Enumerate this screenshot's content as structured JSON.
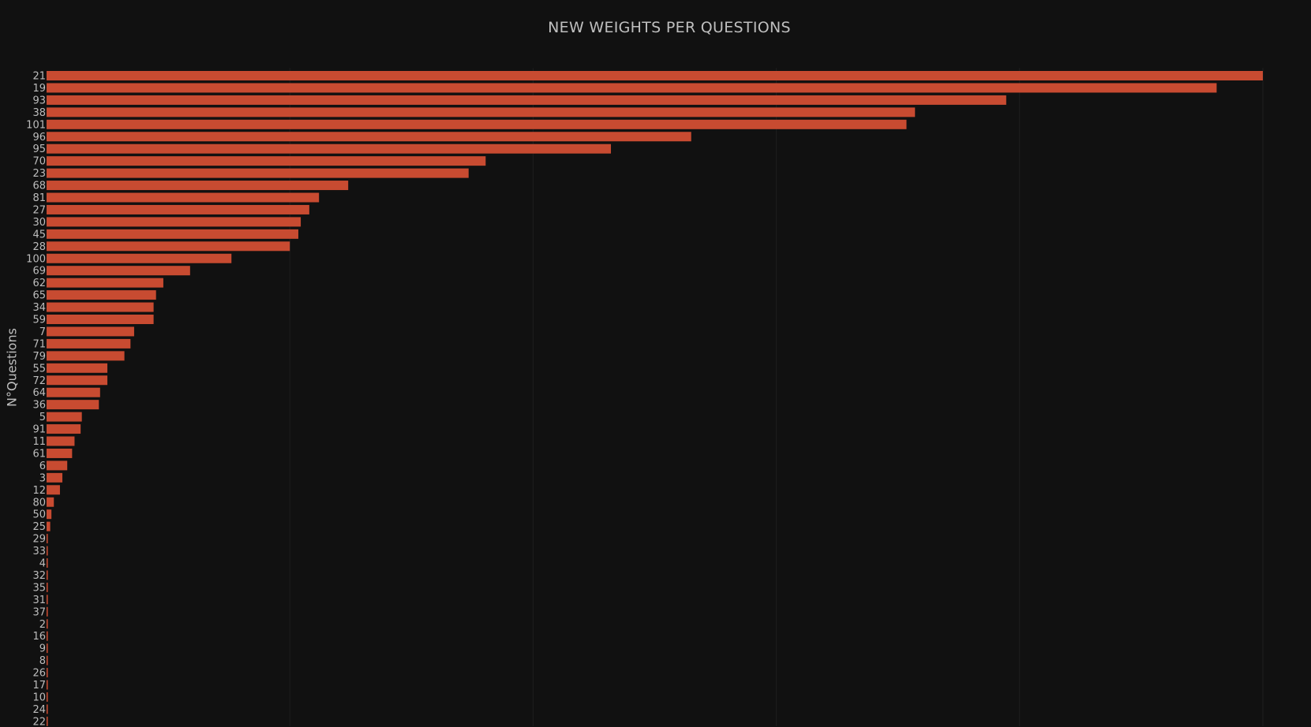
{
  "chart_data": {
    "type": "bar",
    "orientation": "horizontal",
    "title": "NEW WEIGHTS PER QUESTIONS",
    "xlabel": "",
    "ylabel": "N°Questions",
    "xlim": [
      0,
      100
    ],
    "grid": true,
    "legend": "none",
    "bar_color": "#c84b31",
    "categories": [
      "21",
      "19",
      "93",
      "38",
      "101",
      "96",
      "95",
      "70",
      "23",
      "68",
      "81",
      "27",
      "30",
      "45",
      "28",
      "100",
      "69",
      "62",
      "65",
      "34",
      "59",
      "7",
      "71",
      "79",
      "55",
      "72",
      "64",
      "36",
      "5",
      "91",
      "11",
      "61",
      "6",
      "3",
      "12",
      "80",
      "50",
      "25",
      "29",
      "33",
      "4",
      "32",
      "35",
      "31",
      "37",
      "2",
      "16",
      "9",
      "8",
      "26",
      "17",
      "10",
      "24",
      "22"
    ],
    "values": [
      100,
      96.2,
      78.9,
      71.4,
      70.7,
      53.0,
      46.4,
      36.1,
      34.7,
      24.8,
      22.4,
      21.6,
      20.9,
      20.7,
      20.0,
      15.2,
      11.8,
      9.6,
      9.0,
      8.8,
      8.8,
      7.2,
      6.9,
      6.4,
      5.0,
      5.0,
      4.4,
      4.3,
      2.9,
      2.8,
      2.3,
      2.1,
      1.7,
      1.3,
      1.1,
      0.6,
      0.4,
      0.3,
      0.1,
      0.1,
      0.1,
      0.1,
      0.1,
      0.1,
      0.1,
      0.1,
      0.1,
      0.1,
      0.1,
      0.1,
      0.1,
      0.1,
      0.1,
      0.1
    ]
  }
}
